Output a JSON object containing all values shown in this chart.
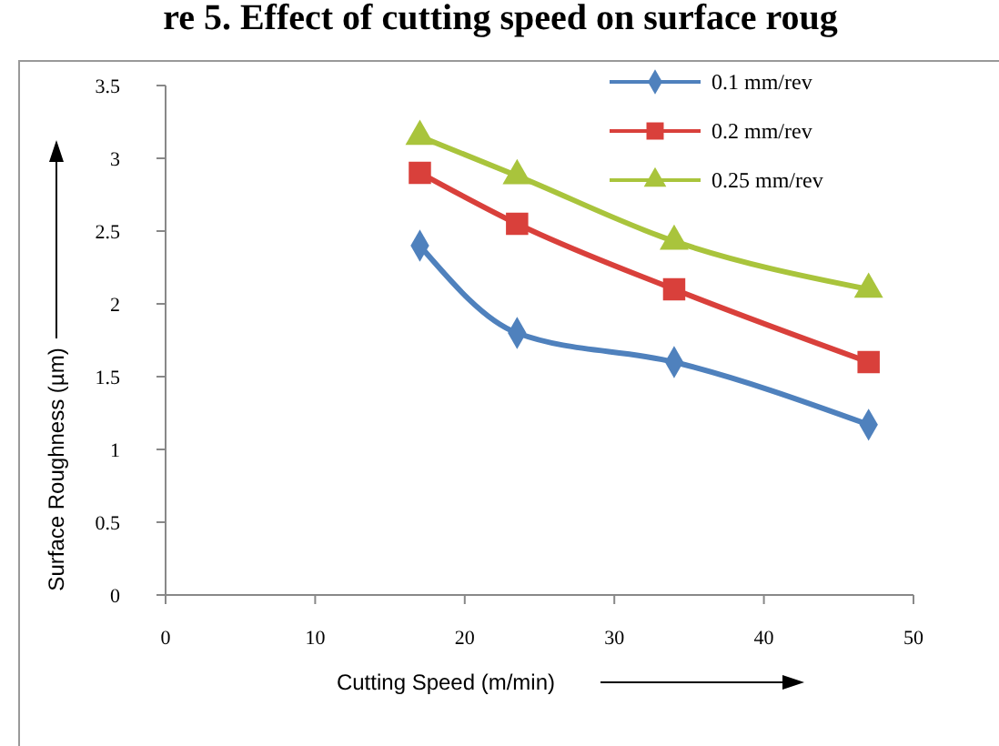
{
  "chart_data": {
    "type": "line",
    "title": "re 5. Effect of cutting speed on surface roug",
    "xlabel": "Cutting Speed (m/min)",
    "ylabel": "Surface Roughness (µm)",
    "x": [
      17,
      23.5,
      34,
      47
    ],
    "series": [
      {
        "name": "0.1 mm/rev",
        "color": "#4f81bd",
        "marker": "diamond",
        "values": [
          2.4,
          1.8,
          1.6,
          1.17
        ]
      },
      {
        "name": "0.2 mm/rev",
        "color": "#d9403b",
        "marker": "square",
        "values": [
          2.9,
          2.55,
          2.1,
          1.6
        ]
      },
      {
        "name": "0.25 mm/rev",
        "color": "#a9c43c",
        "marker": "triangle",
        "values": [
          3.15,
          2.88,
          2.43,
          2.1
        ]
      }
    ],
    "xlim": [
      0,
      50
    ],
    "xticks": [
      0,
      10,
      20,
      30,
      40,
      50
    ],
    "ylim": [
      0,
      3.5
    ],
    "yticks": [
      0,
      0.5,
      1,
      1.5,
      2,
      2.5,
      3,
      3.5
    ],
    "legend": "top right",
    "grid": false
  }
}
